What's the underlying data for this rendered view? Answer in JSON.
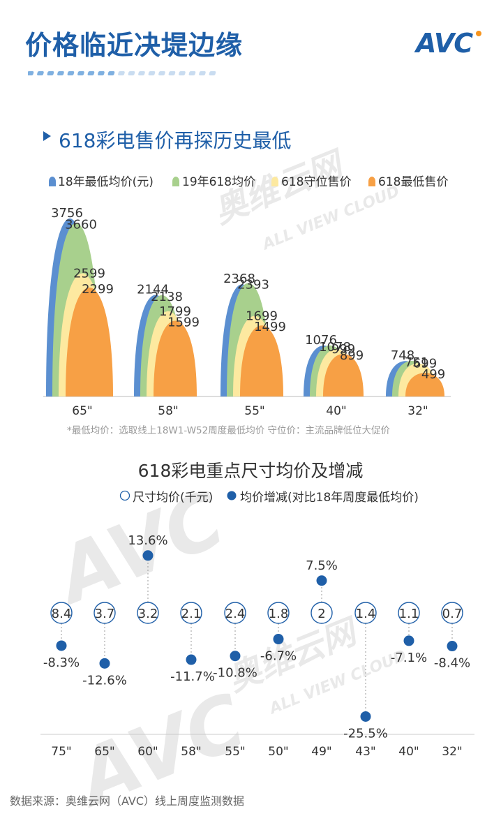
{
  "page_title": "价格临近决堤边缘",
  "logo_text": "AVC",
  "watermark": {
    "logo": "AVC",
    "cn": "奥维云网",
    "en": "ALL VIEW CLOUD"
  },
  "subtitle": "618彩电售价再探历史最低",
  "note": "*最低均价：选取线上18W1-W52周度最低均价    守位价：主流品牌低位大促价",
  "source": "数据来源：奥维云网（AVC）线上周度监测数据",
  "chart_data": [
    {
      "type": "bar",
      "title": "618彩电售价再探历史最低",
      "categories": [
        "65\"",
        "58\"",
        "55\"",
        "40\"",
        "32\""
      ],
      "series": [
        {
          "name": "18年最低均价(元)",
          "values": [
            3756,
            2144,
            2368,
            1076,
            748
          ],
          "color": "#5b8fd0"
        },
        {
          "name": "19年618均价",
          "values": [
            3660,
            2138,
            2393,
            1078,
            751
          ],
          "color": "#a8d08d"
        },
        {
          "name": "618守位售价",
          "values": [
            2599,
            1799,
            1699,
            999,
            699
          ],
          "color": "#fde9a0"
        },
        {
          "name": "618最低售价",
          "values": [
            2299,
            1599,
            1499,
            899,
            499
          ],
          "color": "#f7a045"
        }
      ],
      "ylim": [
        0,
        4000
      ],
      "legend": "top"
    },
    {
      "type": "scatter",
      "title": "618彩电重点尺寸均价及增减",
      "categories": [
        "75\"",
        "65\"",
        "60\"",
        "58\"",
        "55\"",
        "50\"",
        "49\"",
        "43\"",
        "40\"",
        "32\""
      ],
      "series": [
        {
          "name": "尺寸均价(千元)",
          "values": [
            8.4,
            3.7,
            3.2,
            2.1,
            2.4,
            1.8,
            2.0,
            1.4,
            1.1,
            0.7
          ],
          "color": "#1f5fa8"
        },
        {
          "name": "均价增减(对比18年周度最低均价)",
          "values": [
            -8.3,
            -12.6,
            13.6,
            -11.7,
            -10.8,
            -6.7,
            7.5,
            -25.5,
            -7.1,
            -8.4
          ],
          "labels": [
            "-8.3%",
            "-12.6%",
            "13.6%",
            "-11.7%",
            "-10.8%",
            "-6.7%",
            "7.5%",
            "-25.5%",
            "-7.1%",
            "-8.4%"
          ],
          "color": "#1f5fa8"
        }
      ],
      "legend": "top"
    }
  ]
}
